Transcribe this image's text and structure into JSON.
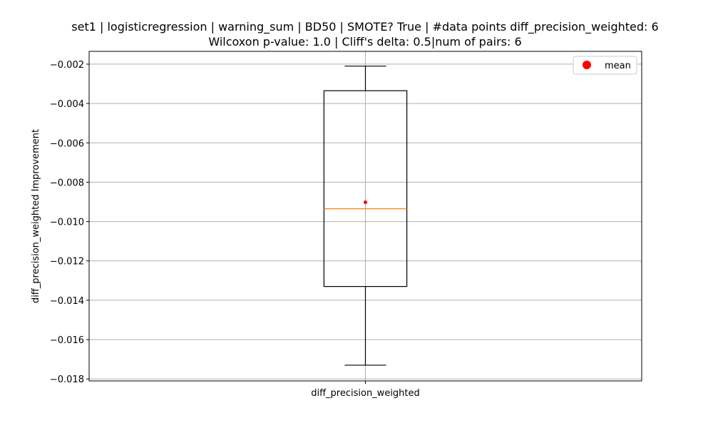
{
  "chart_data": {
    "type": "box",
    "title_line1": "set1 | logisticregression | warning_sum | BD50 | SMOTE? True | #data points diff_precision_weighted: 6",
    "title_line2": "Wilcoxon p-value: 1.0 | Cliff's delta: 0.5|num of pairs: 6",
    "ylabel": "diff_precision_weighted Improvement",
    "categories": [
      "diff_precision_weighted"
    ],
    "ylim": [
      -0.0181,
      -0.00135
    ],
    "yticks": [
      -0.002,
      -0.004,
      -0.006,
      -0.008,
      -0.01,
      -0.012,
      -0.014,
      -0.016,
      -0.018
    ],
    "ytick_labels": [
      "−0.002",
      "−0.004",
      "−0.006",
      "−0.008",
      "−0.010",
      "−0.012",
      "−0.014",
      "−0.016",
      "−0.018"
    ],
    "grid": true,
    "legend": {
      "entries": [
        "mean"
      ],
      "placement": "top-right"
    },
    "boxes": [
      {
        "name": "diff_precision_weighted",
        "whisker_low": -0.0173,
        "q1": -0.0133,
        "median": -0.00935,
        "q3": -0.00335,
        "whisker_high": -0.0021,
        "mean": -0.00902
      }
    ],
    "colors": {
      "box": "#000000",
      "median": "#ff7f0e",
      "mean": "#ff0000",
      "grid": "#b0b0b0"
    }
  }
}
